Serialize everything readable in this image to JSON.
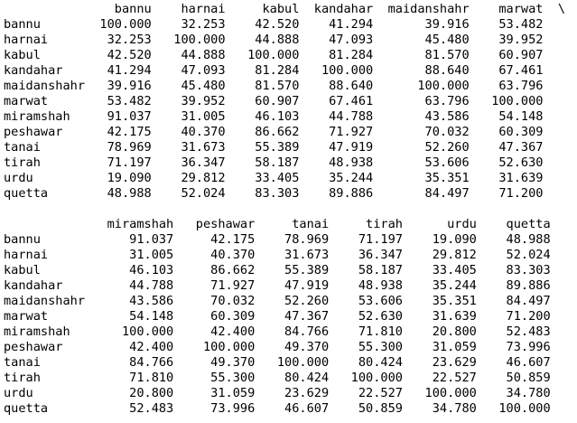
{
  "output": {
    "block1": {
      "columns": [
        "bannu",
        "harnai",
        "kabul",
        "kandahar",
        "maidanshahr",
        "marwat"
      ],
      "continuation_marker": "\\",
      "rows": [
        {
          "label": "bannu",
          "values": [
            "100.000",
            "32.253",
            "42.520",
            "41.294",
            "39.916",
            "53.482"
          ]
        },
        {
          "label": "harnai",
          "values": [
            "32.253",
            "100.000",
            "44.888",
            "47.093",
            "45.480",
            "39.952"
          ]
        },
        {
          "label": "kabul",
          "values": [
            "42.520",
            "44.888",
            "100.000",
            "81.284",
            "81.570",
            "60.907"
          ]
        },
        {
          "label": "kandahar",
          "values": [
            "41.294",
            "47.093",
            "81.284",
            "100.000",
            "88.640",
            "67.461"
          ]
        },
        {
          "label": "maidanshahr",
          "values": [
            "39.916",
            "45.480",
            "81.570",
            "88.640",
            "100.000",
            "63.796"
          ]
        },
        {
          "label": "marwat",
          "values": [
            "53.482",
            "39.952",
            "60.907",
            "67.461",
            "63.796",
            "100.000"
          ]
        },
        {
          "label": "miramshah",
          "values": [
            "91.037",
            "31.005",
            "46.103",
            "44.788",
            "43.586",
            "54.148"
          ]
        },
        {
          "label": "peshawar",
          "values": [
            "42.175",
            "40.370",
            "86.662",
            "71.927",
            "70.032",
            "60.309"
          ]
        },
        {
          "label": "tanai",
          "values": [
            "78.969",
            "31.673",
            "55.389",
            "47.919",
            "52.260",
            "47.367"
          ]
        },
        {
          "label": "tirah",
          "values": [
            "71.197",
            "36.347",
            "58.187",
            "48.938",
            "53.606",
            "52.630"
          ]
        },
        {
          "label": "urdu",
          "values": [
            "19.090",
            "29.812",
            "33.405",
            "35.244",
            "35.351",
            "31.639"
          ]
        },
        {
          "label": "quetta",
          "values": [
            "48.988",
            "52.024",
            "83.303",
            "89.886",
            "84.497",
            "71.200"
          ]
        }
      ]
    },
    "block2": {
      "columns": [
        "miramshah",
        "peshawar",
        "tanai",
        "tirah",
        "urdu",
        "quetta"
      ],
      "rows": [
        {
          "label": "bannu",
          "values": [
            "91.037",
            "42.175",
            "78.969",
            "71.197",
            "19.090",
            "48.988"
          ]
        },
        {
          "label": "harnai",
          "values": [
            "31.005",
            "40.370",
            "31.673",
            "36.347",
            "29.812",
            "52.024"
          ]
        },
        {
          "label": "kabul",
          "values": [
            "46.103",
            "86.662",
            "55.389",
            "58.187",
            "33.405",
            "83.303"
          ]
        },
        {
          "label": "kandahar",
          "values": [
            "44.788",
            "71.927",
            "47.919",
            "48.938",
            "35.244",
            "89.886"
          ]
        },
        {
          "label": "maidanshahr",
          "values": [
            "43.586",
            "70.032",
            "52.260",
            "53.606",
            "35.351",
            "84.497"
          ]
        },
        {
          "label": "marwat",
          "values": [
            "54.148",
            "60.309",
            "47.367",
            "52.630",
            "31.639",
            "71.200"
          ]
        },
        {
          "label": "miramshah",
          "values": [
            "100.000",
            "42.400",
            "84.766",
            "71.810",
            "20.800",
            "52.483"
          ]
        },
        {
          "label": "peshawar",
          "values": [
            "42.400",
            "100.000",
            "49.370",
            "55.300",
            "31.059",
            "73.996"
          ]
        },
        {
          "label": "tanai",
          "values": [
            "84.766",
            "49.370",
            "100.000",
            "80.424",
            "23.629",
            "46.607"
          ]
        },
        {
          "label": "tirah",
          "values": [
            "71.810",
            "55.300",
            "80.424",
            "100.000",
            "22.527",
            "50.859"
          ]
        },
        {
          "label": "urdu",
          "values": [
            "20.800",
            "31.059",
            "23.629",
            "22.527",
            "100.000",
            "34.780"
          ]
        },
        {
          "label": "quetta",
          "values": [
            "52.483",
            "73.996",
            "46.607",
            "50.859",
            "34.780",
            "100.000"
          ]
        }
      ]
    }
  }
}
